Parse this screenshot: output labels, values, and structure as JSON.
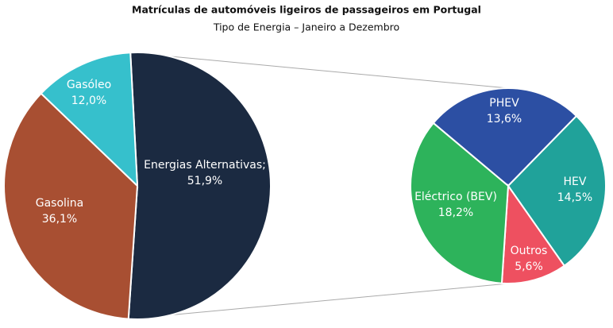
{
  "chart_data": {
    "type": "pie",
    "title": "Matrículas de automóveis ligeiros de passageiros em Portugal",
    "subtitle": "Tipo de Energia – Janeiro a Dezembro",
    "categories": [
      "Energias Alternativas;",
      "Gasolina",
      "Gasóleo"
    ],
    "values": [
      51.9,
      36.1,
      12.0
    ],
    "value_labels": [
      "51,9%",
      "36,1%",
      "12,0%"
    ],
    "colors": [
      "#1b2a41",
      "#a84f32",
      "#36c0cc"
    ],
    "breakout": {
      "categories": [
        "PHEV",
        "HEV",
        "Outros",
        "Eléctrico (BEV)"
      ],
      "values": [
        13.6,
        14.5,
        5.6,
        18.2
      ],
      "value_labels": [
        "13,6%",
        "14,5%",
        "5,6%",
        "18,2%"
      ],
      "colors": [
        "#2c4fa3",
        "#20a29a",
        "#ee5060",
        "#2db35b"
      ]
    }
  }
}
